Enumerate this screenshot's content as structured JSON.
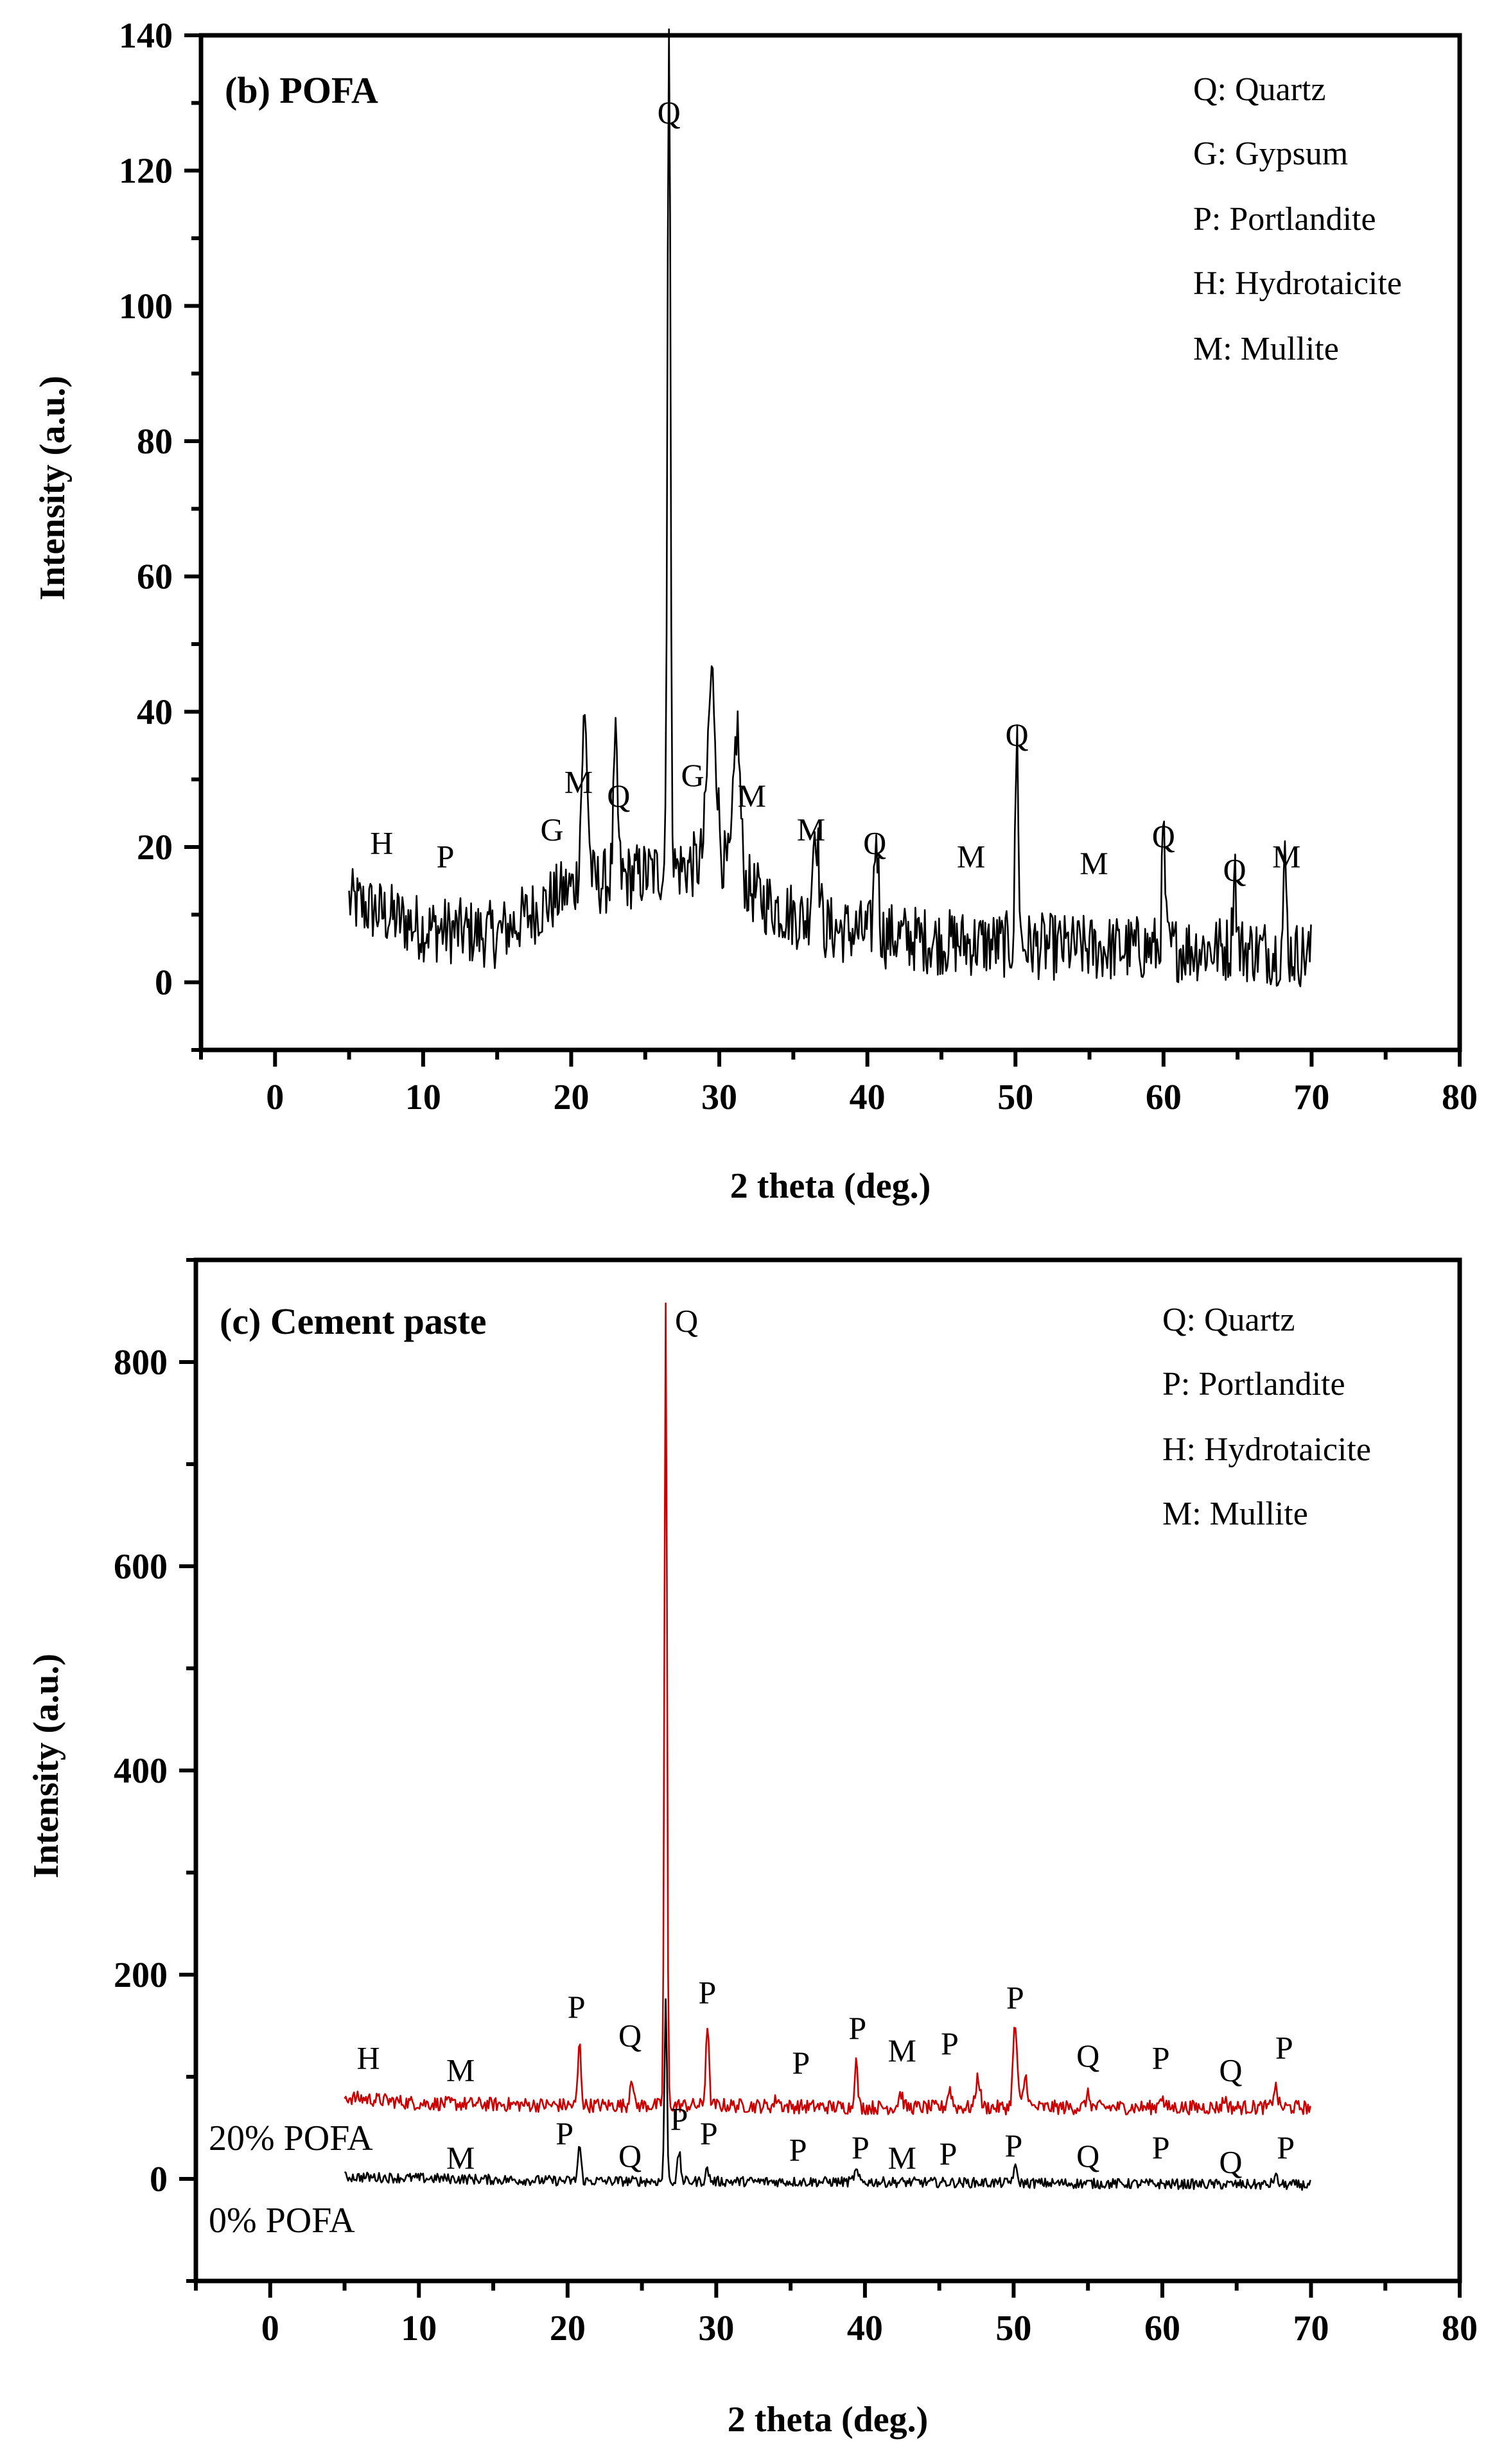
{
  "chart_data": [
    {
      "type": "line",
      "panel": "b",
      "title": "(b) POFA",
      "xlabel": "2 theta (deg.)",
      "ylabel": "Intensity (a.u.)",
      "xlim": [
        -5,
        80
      ],
      "ylim": [
        -10,
        140
      ],
      "xticks": [
        0,
        10,
        20,
        30,
        40,
        50,
        60,
        70,
        80
      ],
      "yticks": [
        0,
        20,
        40,
        60,
        80,
        100,
        120,
        140
      ],
      "legend": [
        "Q: Quartz",
        "G: Gypsum",
        "P: Portlandite",
        "H: Hydrotaicite",
        "M: Mullite"
      ],
      "series": [
        {
          "name": "POFA",
          "color": "#000000",
          "baseline": [
            [
              5,
              12
            ],
            [
              10,
              8
            ],
            [
              15,
              7
            ],
            [
              20,
              14
            ],
            [
              25,
              16
            ],
            [
              30,
              18
            ],
            [
              33,
              12
            ],
            [
              37,
              8
            ],
            [
              45,
              6
            ],
            [
              55,
              5
            ],
            [
              65,
              5
            ],
            [
              70,
              4
            ]
          ],
          "noise": 5,
          "peaks": [
            [
              20.9,
              24,
              0.3
            ],
            [
              23.0,
              19,
              0.2
            ],
            [
              26.6,
              123,
              0.15
            ],
            [
              29.5,
              27,
              0.4
            ],
            [
              31.2,
              22,
              0.3
            ],
            [
              36.5,
              15,
              0.3
            ],
            [
              40.6,
              15,
              0.2
            ],
            [
              50.1,
              31,
              0.15
            ],
            [
              60.0,
              17,
              0.15
            ],
            [
              64.8,
              13,
              0.15
            ],
            [
              68.2,
              13,
              0.15
            ]
          ]
        }
      ],
      "peak_labels": [
        {
          "text": "H",
          "x": 7.2,
          "y": 19
        },
        {
          "text": "P",
          "x": 11.5,
          "y": 17
        },
        {
          "text": "G",
          "x": 18.7,
          "y": 21
        },
        {
          "text": "M",
          "x": 20.5,
          "y": 28
        },
        {
          "text": "Q",
          "x": 23.2,
          "y": 26
        },
        {
          "text": "Q",
          "x": 26.6,
          "y": 127
        },
        {
          "text": "G",
          "x": 28.2,
          "y": 29
        },
        {
          "text": "M",
          "x": 32.2,
          "y": 26
        },
        {
          "text": "M",
          "x": 36.2,
          "y": 21
        },
        {
          "text": "Q",
          "x": 40.5,
          "y": 19
        },
        {
          "text": "M",
          "x": 47.0,
          "y": 17
        },
        {
          "text": "Q",
          "x": 50.1,
          "y": 35
        },
        {
          "text": "M",
          "x": 55.3,
          "y": 16
        },
        {
          "text": "Q",
          "x": 60.0,
          "y": 20
        },
        {
          "text": "Q",
          "x": 64.8,
          "y": 15
        },
        {
          "text": "M",
          "x": 68.3,
          "y": 17
        }
      ]
    },
    {
      "type": "line",
      "panel": "c",
      "title": "(c) Cement paste",
      "xlabel": "2 theta (deg.)",
      "ylabel": "Intensity (a.u.)",
      "xlim": [
        -5,
        80
      ],
      "ylim": [
        -100,
        900
      ],
      "xticks": [
        0,
        10,
        20,
        30,
        40,
        50,
        60,
        70,
        80
      ],
      "yticks": [
        0,
        200,
        400,
        600,
        800
      ],
      "legend": [
        "Q: Quartz",
        "P: Portlandite",
        "H: Hydrotaicite",
        "M: Mullite"
      ],
      "series": [
        {
          "name": "20% POFA",
          "color": "#cc0000",
          "baseline": [
            [
              5,
              80
            ],
            [
              10,
              74
            ],
            [
              20,
              72
            ],
            [
              30,
              72
            ],
            [
              40,
              70
            ],
            [
              50,
              70
            ],
            [
              60,
              70
            ],
            [
              70,
              70
            ]
          ],
          "noise": 7,
          "peaks": [
            [
              20.8,
              60,
              0.15
            ],
            [
              24.3,
              30,
              0.15
            ],
            [
              26.6,
              785,
              0.12
            ],
            [
              29.4,
              80,
              0.15
            ],
            [
              34.1,
              8,
              0.2
            ],
            [
              39.4,
              45,
              0.15
            ],
            [
              42.4,
              14,
              0.2
            ],
            [
              45.7,
              18,
              0.2
            ],
            [
              47.6,
              30,
              0.2
            ],
            [
              50.1,
              80,
              0.2
            ],
            [
              50.8,
              30,
              0.2
            ],
            [
              55.0,
              12,
              0.2
            ],
            [
              59.9,
              12,
              0.2
            ],
            [
              64.2,
              8,
              0.2
            ],
            [
              67.6,
              20,
              0.2
            ]
          ]
        },
        {
          "name": "0% POFA",
          "color": "#000000",
          "baseline": [
            [
              5,
              2
            ],
            [
              20,
              -2
            ],
            [
              40,
              -3
            ],
            [
              60,
              -5
            ],
            [
              70,
              -6
            ]
          ],
          "noise": 5,
          "peaks": [
            [
              20.8,
              35,
              0.15
            ],
            [
              26.6,
              175,
              0.12
            ],
            [
              27.5,
              28,
              0.15
            ],
            [
              29.4,
              12,
              0.15
            ],
            [
              39.4,
              10,
              0.2
            ],
            [
              50.1,
              14,
              0.2
            ],
            [
              67.6,
              8,
              0.2
            ]
          ]
        }
      ],
      "series_labels": [
        "20% POFA",
        "0% POFA"
      ],
      "peak_labels": [
        {
          "text": "H",
          "x": 6.6,
          "y": 108
        },
        {
          "text": "M",
          "x": 12.8,
          "y": 96
        },
        {
          "text": "P",
          "x": 20.6,
          "y": 158
        },
        {
          "text": "Q",
          "x": 24.2,
          "y": 130
        },
        {
          "text": "Q",
          "x": 28.0,
          "y": 830
        },
        {
          "text": "P",
          "x": 29.4,
          "y": 172
        },
        {
          "text": "P",
          "x": 35.7,
          "y": 103
        },
        {
          "text": "P",
          "x": 39.5,
          "y": 137
        },
        {
          "text": "M",
          "x": 42.5,
          "y": 115
        },
        {
          "text": "P",
          "x": 45.7,
          "y": 122
        },
        {
          "text": "P",
          "x": 50.1,
          "y": 167
        },
        {
          "text": "Q",
          "x": 55.0,
          "y": 110
        },
        {
          "text": "P",
          "x": 59.9,
          "y": 108
        },
        {
          "text": "Q",
          "x": 64.6,
          "y": 96
        },
        {
          "text": "P",
          "x": 68.2,
          "y": 118
        },
        {
          "text": "M",
          "x": 12.8,
          "y": 10
        },
        {
          "text": "P",
          "x": 19.8,
          "y": 34
        },
        {
          "text": "Q",
          "x": 24.2,
          "y": 12
        },
        {
          "text": "P",
          "x": 27.5,
          "y": 48
        },
        {
          "text": "P",
          "x": 29.5,
          "y": 34
        },
        {
          "text": "P",
          "x": 35.5,
          "y": 18
        },
        {
          "text": "P",
          "x": 39.7,
          "y": 20
        },
        {
          "text": "M",
          "x": 42.5,
          "y": 10
        },
        {
          "text": "P",
          "x": 45.6,
          "y": 14
        },
        {
          "text": "P",
          "x": 50.0,
          "y": 22
        },
        {
          "text": "Q",
          "x": 55.0,
          "y": 12
        },
        {
          "text": "P",
          "x": 59.9,
          "y": 20
        },
        {
          "text": "Q",
          "x": 64.6,
          "y": 6
        },
        {
          "text": "P",
          "x": 68.3,
          "y": 20
        }
      ]
    }
  ]
}
